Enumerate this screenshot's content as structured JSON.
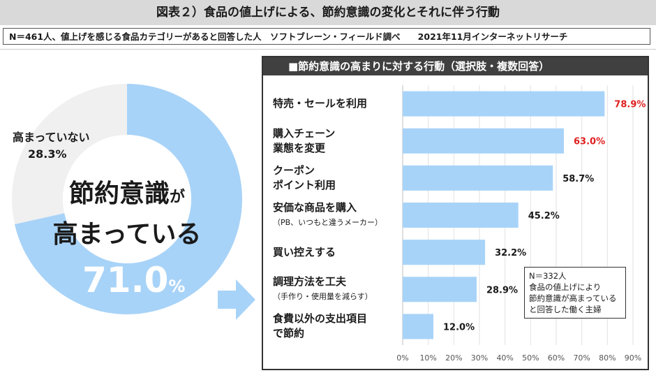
{
  "header": {
    "title": "図表２）食品の値上げによる、節約意識の変化とそれに伴う行動",
    "subtitle": "N＝461人、値上げを感じる食品カテゴリーがあると回答した人　ソフトブレーン・フィールド調べ　　2021年11月インターネットリサーチ"
  },
  "donut": {
    "not_label": "高まっていない",
    "not_value": "28.3%",
    "center_line1": "節約意識",
    "center_ga": "が",
    "center_line2": "高まっている",
    "main_value": "71.0",
    "main_unit": "%",
    "colors": {
      "main": "#a8d3f8",
      "rest": "#f0f0f0"
    }
  },
  "panel": {
    "title": "■節約意識の高まりに対する行動（選択肢・複数回答）",
    "note": [
      "N＝332人",
      "食品の値上げにより",
      "節約意識が高まっている",
      "と回答した働く主婦"
    ]
  },
  "chart_data": [
    {
      "type": "pie",
      "labels": [
        "高まっている",
        "高まっていない"
      ],
      "values": [
        71.0,
        28.3
      ]
    },
    {
      "type": "bar",
      "orientation": "horizontal",
      "title": "■節約意識の高まりに対する行動（選択肢・複数回答）",
      "categories": [
        {
          "main": "特売・セールを利用",
          "main2": "",
          "sub": ""
        },
        {
          "main": "購入チェーン",
          "main2": "業態を変更",
          "sub": ""
        },
        {
          "main": "クーポン",
          "main2": "ポイント利用",
          "sub": ""
        },
        {
          "main": "安価な商品を購入",
          "main2": "",
          "sub": "（PB、いつもと違うメーカー）"
        },
        {
          "main": "買い控えする",
          "main2": "",
          "sub": ""
        },
        {
          "main": "調理方法を工夫",
          "main2": "",
          "sub": "（手作り・使用量を減らす）"
        },
        {
          "main": "食費以外の支出項目",
          "main2": "で節約",
          "sub": ""
        }
      ],
      "values": [
        78.9,
        63.0,
        58.7,
        45.2,
        32.2,
        28.9,
        12.0
      ],
      "value_labels": [
        "78.9%",
        "63.0%",
        "58.7%",
        "45.2%",
        "32.2%",
        "28.9%",
        "12.0%"
      ],
      "highlight": [
        true,
        true,
        false,
        false,
        false,
        false,
        false
      ],
      "xlim": [
        0,
        90
      ],
      "xticks": [
        "0%",
        "10%",
        "20%",
        "30%",
        "40%",
        "50%",
        "60%",
        "70%",
        "80%",
        "90%"
      ],
      "colors": {
        "bar": "#a8d3f8",
        "highlight_text": "#e02020",
        "text": "#1a1a1a"
      }
    }
  ]
}
